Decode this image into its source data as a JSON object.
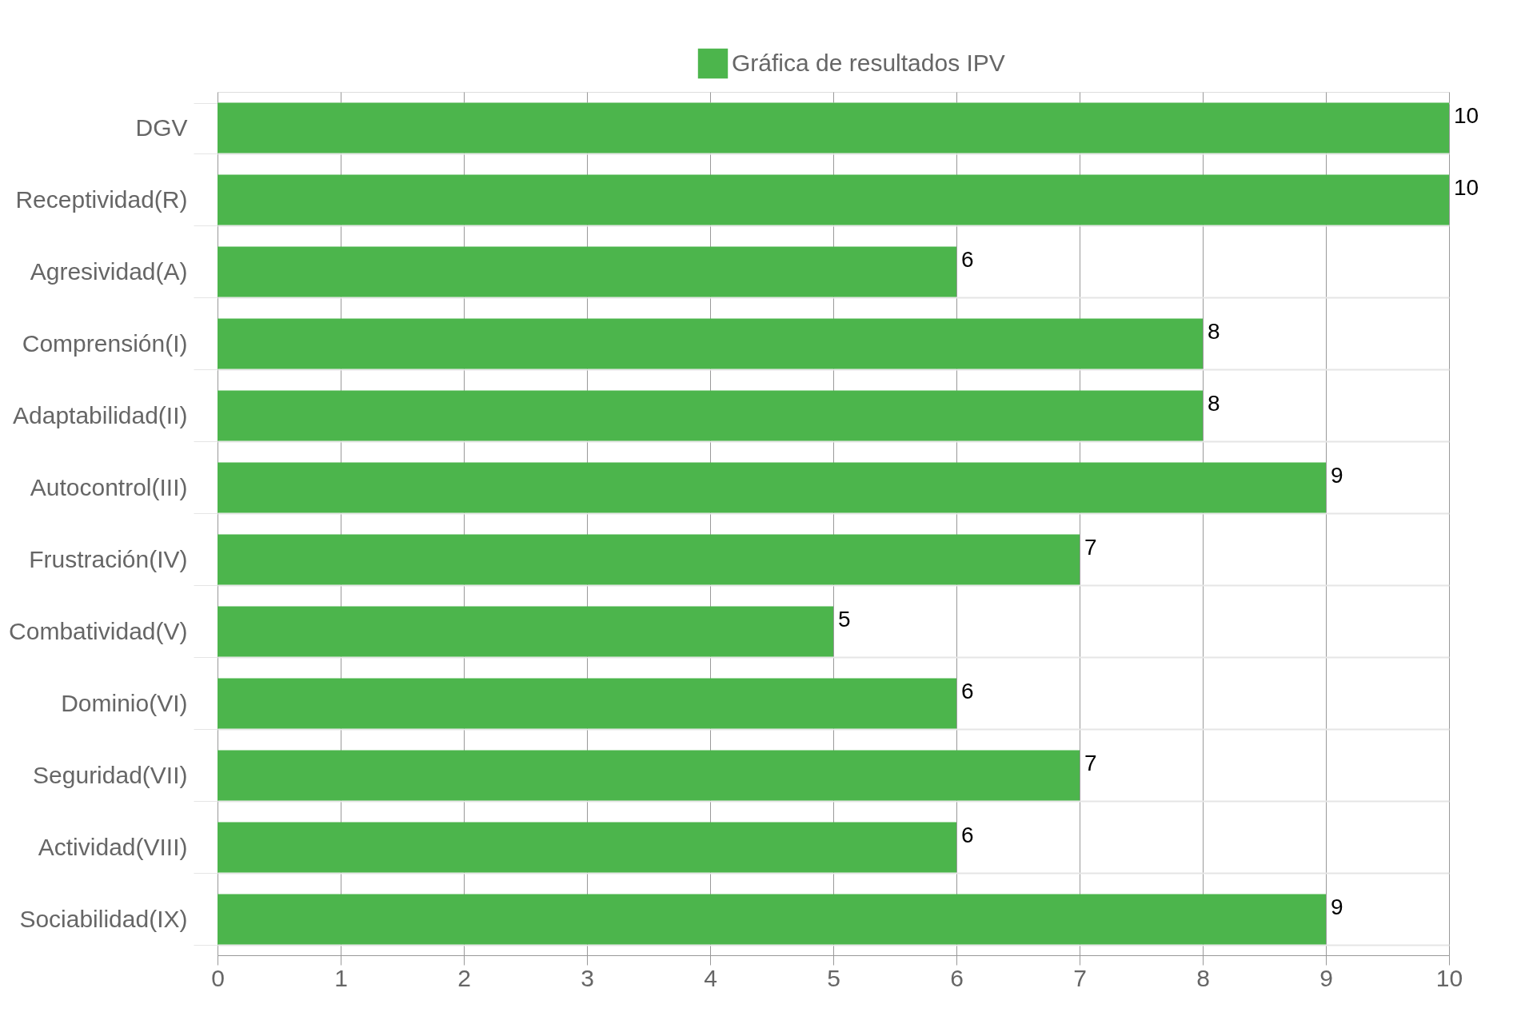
{
  "chart_data": {
    "type": "bar",
    "orientation": "horizontal",
    "categories": [
      "DGV",
      "Receptividad(R)",
      "Agresividad(A)",
      "Comprensión(I)",
      "Adaptabilidad(II)",
      "Autocontrol(III)",
      "Frustración(IV)",
      "Combatividad(V)",
      "Dominio(VI)",
      "Seguridad(VII)",
      "Actividad(VIII)",
      "Sociabilidad(IX)"
    ],
    "series": [
      {
        "name": "Gráfica de resultados IPV",
        "color": "#4cb54c",
        "values": [
          10,
          10,
          6,
          8,
          8,
          9,
          7,
          5,
          6,
          7,
          6,
          9
        ]
      }
    ],
    "xlim": [
      0,
      10
    ],
    "xticks": [
      0,
      1,
      2,
      3,
      4,
      5,
      6,
      7,
      8,
      9,
      10
    ],
    "grid": true,
    "legend": "top",
    "data_labels": true
  }
}
